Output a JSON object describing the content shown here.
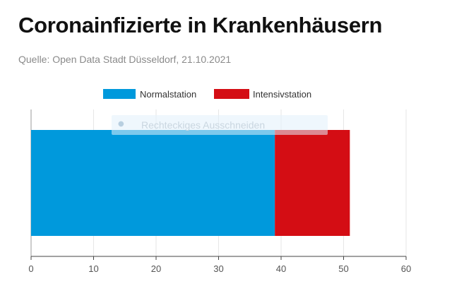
{
  "header": {
    "title": "Coronainfizierte in Krankenhäusern",
    "source": "Quelle: Open Data Stadt Düsseldorf, 21.10.2021"
  },
  "overlay": {
    "icon": "rectangle-select-icon",
    "label": "Rechteckiges Ausschneiden"
  },
  "chart_data": {
    "type": "bar",
    "orientation": "horizontal",
    "stacked": true,
    "categories": [
      ""
    ],
    "series": [
      {
        "name": "Normalstation",
        "values": [
          39
        ],
        "color": "#0099dc"
      },
      {
        "name": "Intensivstation",
        "values": [
          12
        ],
        "color": "#d40d14"
      }
    ],
    "xlim": [
      0,
      60
    ],
    "xticks": [
      0,
      10,
      20,
      30,
      40,
      50,
      60
    ],
    "grid": true,
    "legend": "top"
  }
}
